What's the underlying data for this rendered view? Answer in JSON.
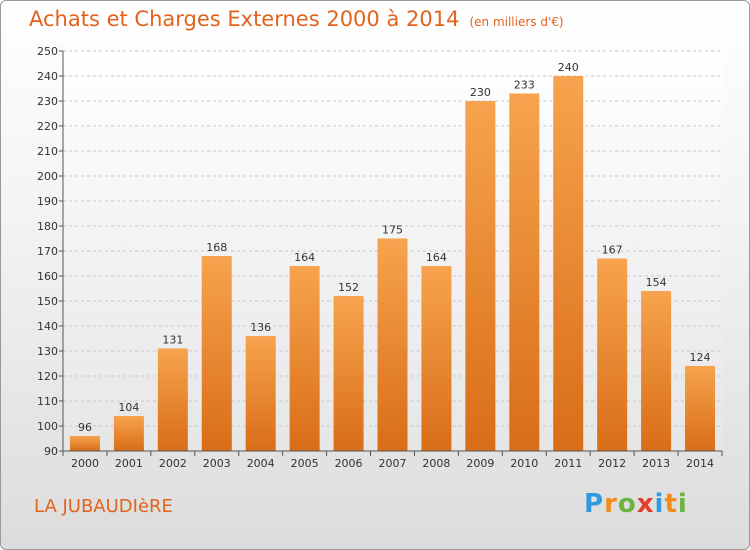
{
  "header": {
    "title": "Achats et Charges Externes 2000 à 2014",
    "subtitle": "(en milliers d'€)"
  },
  "footer": {
    "commune": "LA JUBAUDIèRE",
    "logo_letters": [
      "P",
      "r",
      "o",
      "x",
      "i",
      "t",
      "i"
    ],
    "logo_colors": [
      "#2e9be0",
      "#f28c1e",
      "#6cb33f",
      "#e63c2e",
      "#2e9be0",
      "#f28c1e",
      "#6cb33f"
    ]
  },
  "colors": {
    "bar_top": "#f7a34f",
    "bar_bottom": "#d96d17",
    "title": "#e2631d"
  },
  "chart_data": {
    "type": "bar",
    "title": "Achats et Charges Externes 2000 à 2014",
    "subtitle": "(en milliers d'€)",
    "categories": [
      "2000",
      "2001",
      "2002",
      "2003",
      "2004",
      "2005",
      "2006",
      "2007",
      "2008",
      "2009",
      "2010",
      "2011",
      "2012",
      "2013",
      "2014"
    ],
    "values": [
      96,
      104,
      131,
      168,
      136,
      164,
      152,
      175,
      164,
      230,
      233,
      240,
      167,
      154,
      124
    ],
    "ylim": [
      90,
      250
    ],
    "yticks": [
      90,
      100,
      110,
      120,
      130,
      140,
      150,
      160,
      170,
      180,
      190,
      200,
      210,
      220,
      230,
      240,
      250
    ],
    "grid": true,
    "legend": "none"
  }
}
